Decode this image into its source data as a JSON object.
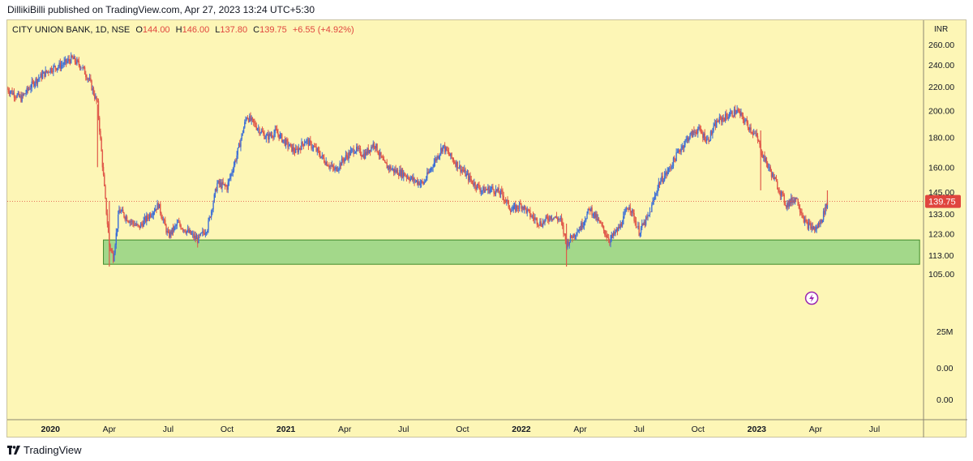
{
  "header": {
    "published": "DillikiBilli published on TradingView.com, Apr 27, 2023 13:24 UTC+5:30"
  },
  "legend": {
    "symbol": "CITY UNION BANK, 1D, NSE",
    "o_label": "O",
    "o_val": "144.00",
    "h_label": "H",
    "h_val": "146.00",
    "l_label": "L",
    "l_val": "137.80",
    "c_label": "C",
    "c_val": "139.75",
    "change": "+6.55 (+4.92%)"
  },
  "footer": {
    "brand": "TradingView"
  },
  "colors": {
    "background": "#fdf6b6",
    "up": "#3d6fd6",
    "down": "#e0594a",
    "zone_fill": "#a3d88a",
    "zone_stroke": "#3f8a2a",
    "price_tag": "#e0453e",
    "change_red": "#e0453e"
  },
  "chart_data": {
    "type": "candlestick",
    "currency_label": "INR",
    "x_ticks": [
      {
        "label": "2020",
        "t": 0,
        "bold": true
      },
      {
        "label": "Apr",
        "t": 3
      },
      {
        "label": "Jul",
        "t": 6
      },
      {
        "label": "Oct",
        "t": 9
      },
      {
        "label": "2021",
        "t": 12,
        "bold": true
      },
      {
        "label": "Apr",
        "t": 15
      },
      {
        "label": "Jul",
        "t": 18
      },
      {
        "label": "Oct",
        "t": 21
      },
      {
        "label": "2022",
        "t": 24,
        "bold": true
      },
      {
        "label": "Apr",
        "t": 27
      },
      {
        "label": "Jul",
        "t": 30
      },
      {
        "label": "Oct",
        "t": 33
      },
      {
        "label": "2023",
        "t": 36,
        "bold": true
      },
      {
        "label": "Apr",
        "t": 39
      },
      {
        "label": "Jul",
        "t": 42
      }
    ],
    "x_range_months": [
      -2.2,
      44.5
    ],
    "y_scale": "log",
    "y_ticks": [
      "260.00",
      "240.00",
      "220.00",
      "200.00",
      "180.00",
      "160.00",
      "145.00",
      "133.00",
      "123.00",
      "113.00",
      "105.00"
    ],
    "y_range": [
      98,
      270
    ],
    "last_price": "139.75",
    "price_series_months": [
      -2.2,
      -1.5,
      -0.8,
      0,
      0.6,
      1.1,
      1.6,
      2.0,
      2.4,
      2.6,
      2.8,
      3.0,
      3.2,
      3.5,
      4.0,
      4.5,
      5.0,
      5.5,
      6.0,
      6.5,
      7.0,
      7.5,
      8.0,
      8.5,
      9.0,
      9.5,
      10.0,
      10.5,
      11.0,
      11.5,
      12.0,
      12.5,
      13.0,
      13.5,
      14.0,
      14.5,
      15.0,
      15.5,
      16.0,
      16.5,
      17.0,
      17.5,
      18.0,
      18.5,
      19.0,
      19.5,
      20.0,
      20.5,
      21.0,
      21.5,
      22.0,
      22.5,
      23.0,
      23.5,
      24.0,
      24.5,
      25.0,
      25.5,
      26.0,
      26.3,
      26.6,
      27.0,
      27.5,
      28.0,
      28.5,
      29.0,
      29.5,
      30.0,
      30.5,
      31.0,
      31.5,
      32.0,
      32.5,
      33.0,
      33.5,
      34.0,
      34.5,
      35.0,
      35.5,
      36.0,
      36.3,
      36.6,
      37.0,
      37.5,
      38.0,
      38.5,
      39.0,
      39.3,
      39.6
    ],
    "price_series_values": [
      218,
      210,
      225,
      236,
      240,
      246,
      238,
      225,
      205,
      170,
      140,
      118,
      112,
      135,
      130,
      126,
      132,
      138,
      122,
      128,
      124,
      120,
      126,
      150,
      148,
      168,
      196,
      188,
      180,
      184,
      176,
      170,
      178,
      172,
      164,
      158,
      166,
      172,
      168,
      176,
      162,
      158,
      156,
      152,
      150,
      162,
      174,
      165,
      158,
      151,
      146,
      147,
      144,
      135,
      138,
      132,
      128,
      132,
      130,
      118,
      122,
      126,
      136,
      128,
      120,
      126,
      138,
      124,
      132,
      150,
      158,
      170,
      180,
      186,
      178,
      192,
      196,
      200,
      190,
      180,
      168,
      160,
      150,
      138,
      142,
      128,
      125,
      130,
      139.75
    ],
    "price_spikes": [
      {
        "t": 2.4,
        "high": 205,
        "low": 160
      },
      {
        "t": 3.0,
        "high": 140,
        "low": 108
      },
      {
        "t": 36.2,
        "high": 185,
        "low": 146
      },
      {
        "t": 39.6,
        "high": 146,
        "low": 137.8
      },
      {
        "t": 26.3,
        "high": 128,
        "low": 108
      }
    ],
    "support_zone": {
      "low": 109,
      "high": 120,
      "t_start": 2.7,
      "t_end": 44.3
    },
    "volume_ticks": [
      "25M",
      "0.00",
      "0.00"
    ],
    "legend_values": {
      "open": 144.0,
      "high": 146.0,
      "low": 137.8,
      "close": 139.75,
      "change": 6.55,
      "change_pct": 4.92
    }
  }
}
